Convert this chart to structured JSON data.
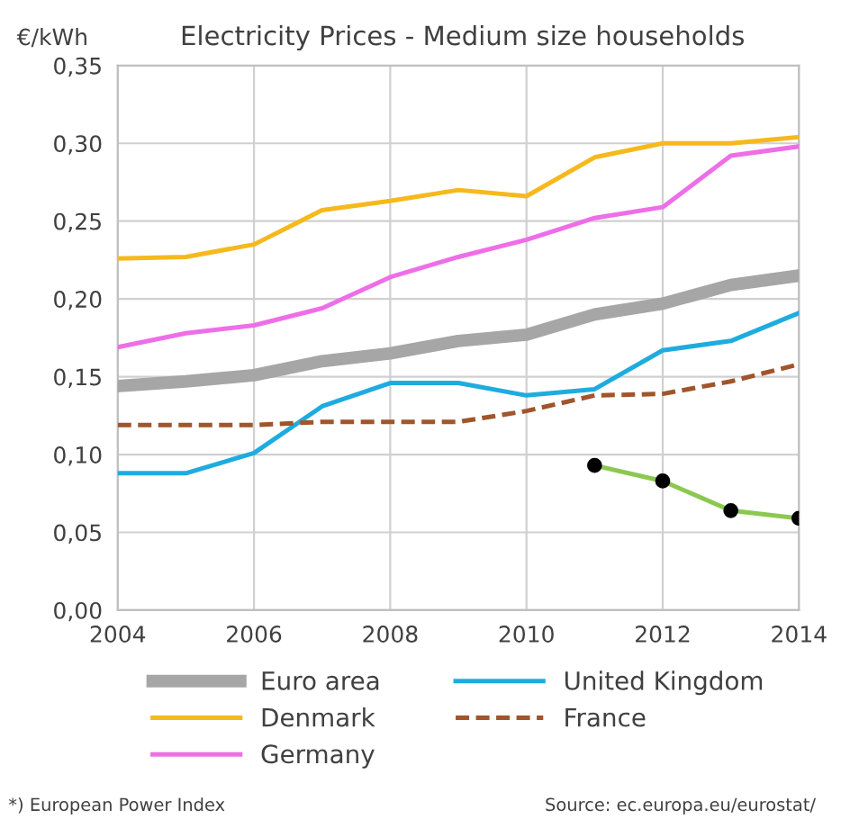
{
  "chart_data": {
    "type": "line",
    "title": "Electricity Prices - Medium size households",
    "ylabel": "€/kWh",
    "x": [
      2004,
      2005,
      2006,
      2007,
      2008,
      2009,
      2010,
      2011,
      2012,
      2013,
      2014
    ],
    "series": [
      {
        "name": "Euro area",
        "color": "#a6a6a6",
        "values": [
          0.144,
          0.147,
          0.151,
          0.16,
          0.165,
          0.173,
          0.177,
          0.19,
          0.197,
          0.209,
          0.215
        ]
      },
      {
        "name": "Denmark",
        "color": "#f5b91e",
        "values": [
          0.226,
          0.227,
          0.235,
          0.257,
          0.263,
          0.27,
          0.266,
          0.291,
          0.3,
          0.3,
          0.304
        ]
      },
      {
        "name": "Germany",
        "color": "#ee6ee8",
        "values": [
          0.169,
          0.178,
          0.183,
          0.194,
          0.214,
          0.227,
          0.238,
          0.252,
          0.259,
          0.292,
          0.298
        ]
      },
      {
        "name": "United Kingdom",
        "color": "#1eacdf",
        "values": [
          0.088,
          0.088,
          0.101,
          0.131,
          0.146,
          0.146,
          0.138,
          0.142,
          0.167,
          0.173,
          0.191
        ]
      },
      {
        "name": "France",
        "color": "#a0552a",
        "line_style": "dashed",
        "values": [
          0.119,
          0.119,
          0.119,
          0.121,
          0.121,
          0.121,
          0.128,
          0.138,
          0.139,
          0.147,
          0.158
        ]
      },
      {
        "color": "#8cc850",
        "marker": "circle",
        "x": [
          2011,
          2012,
          2013,
          2014
        ],
        "values": [
          0.093,
          0.083,
          0.064,
          0.059
        ]
      }
    ],
    "xlim": [
      2004,
      2014
    ],
    "xticks": [
      2004,
      2006,
      2008,
      2010,
      2012,
      2014
    ],
    "ylim": [
      0,
      0.35
    ],
    "yticks": [
      {
        "value": 0,
        "label": "0,00"
      },
      {
        "value": 0.05,
        "label": "0,05"
      },
      {
        "value": 0.1,
        "label": "0,10"
      },
      {
        "value": 0.15,
        "label": "0,15"
      },
      {
        "value": 0.2,
        "label": "0,20"
      },
      {
        "value": 0.25,
        "label": "0,25"
      },
      {
        "value": 0.3,
        "label": "0,30"
      },
      {
        "value": 0.35,
        "label": "0,35"
      }
    ],
    "grid": true,
    "legend": "bottom",
    "annotations": [
      "*) European Power Index",
      "Source: ec.europa.eu/eurostat/"
    ]
  }
}
